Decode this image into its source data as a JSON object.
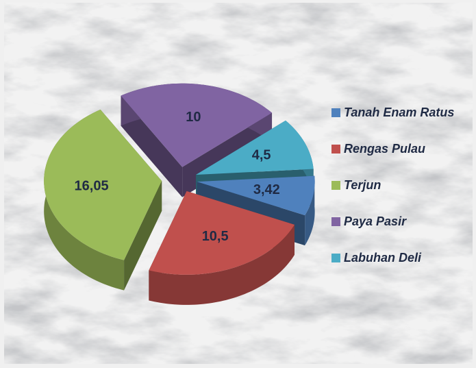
{
  "chart_data": {
    "type": "pie3d",
    "categories": [
      "Tanah Enam Ratus",
      "Rengas Pulau",
      "Terjun",
      "Paya Pasir",
      "Labuhan Deli"
    ],
    "values": [
      3.42,
      10.5,
      16.05,
      10,
      4.5
    ],
    "value_labels": [
      "3,42",
      "10,5",
      "16,05",
      "10",
      "4,5"
    ],
    "colors": [
      "#4f81bd",
      "#c0504d",
      "#9bbb59",
      "#8064a2",
      "#4bacc6"
    ],
    "legend": "right"
  }
}
